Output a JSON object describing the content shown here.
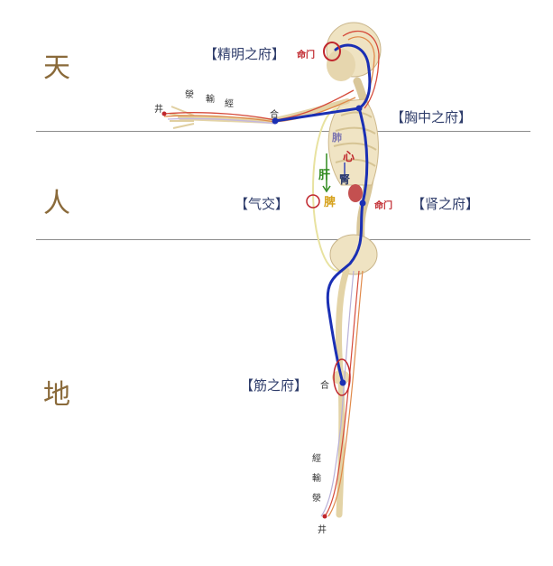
{
  "zones": {
    "heaven": "天",
    "human": "人",
    "earth": "地"
  },
  "labels": {
    "jingming": "【精明之府】",
    "xiongzhong": "【胸中之府】",
    "qijiao": "【气交】",
    "shen": "【肾之府】",
    "jin": "【筋之府】"
  },
  "markers": {
    "mingmen_top": "命门",
    "mingmen_mid": "命门"
  },
  "arm_points": {
    "jing": "井",
    "ying": "滎",
    "shu": "輸",
    "jingl": "經",
    "he": "合"
  },
  "leg_points": {
    "jingl": "經",
    "shu": "輸",
    "ying": "滎",
    "jing": "井",
    "he": "合"
  },
  "organs": {
    "fei": "肺",
    "xin": "心",
    "gan": "肝",
    "shenorg": "腎",
    "pi": "脾"
  },
  "colors": {
    "meridian": "#1a2fb4",
    "accent_red": "#c0272d",
    "liver_green": "#2f8a1e",
    "zone_brown": "#8a6a3a"
  }
}
